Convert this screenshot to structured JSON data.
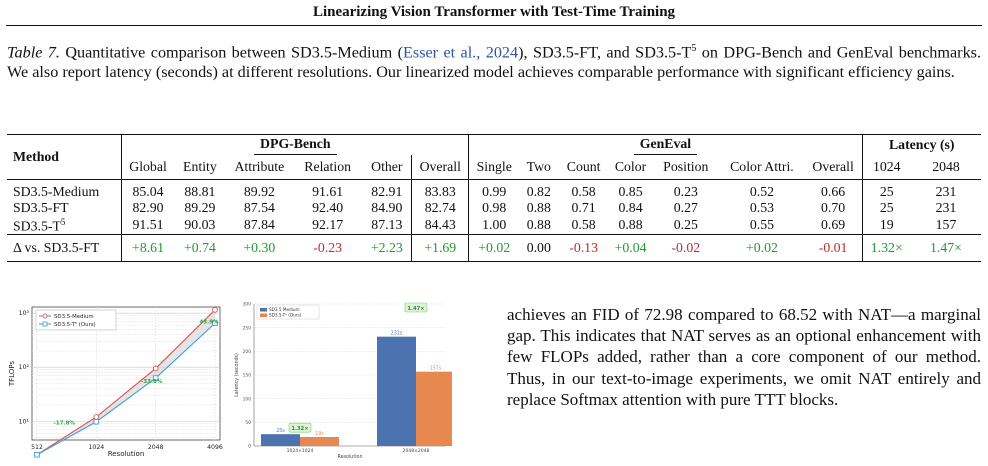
{
  "running_head": "Linearizing Vision Transformer with Test-Time Training",
  "caption": {
    "label": "Table 7.",
    "part1": " Quantitative comparison between SD3.5-Medium (",
    "cite": "Esser et al., 2024",
    "part2": "), SD3.5-FT, and SD3.5-T",
    "sup": "5",
    "part3": " on DPG-Bench and GenEval benchmarks. We also report latency (seconds) at different resolutions. Our linearized model achieves comparable performance with significant efficiency gains."
  },
  "table": {
    "method_header": "Method",
    "group_dpg": "DPG-Bench",
    "group_geneval": "GenEval",
    "group_latency": "Latency (s)",
    "dpg_cols": [
      "Global",
      "Entity",
      "Attribute",
      "Relation",
      "Other",
      "Overall"
    ],
    "geneval_cols": [
      "Single",
      "Two",
      "Count",
      "Color",
      "Position",
      "Color Attri.",
      "Overall"
    ],
    "latency_cols": [
      "1024",
      "2048"
    ],
    "rows": [
      {
        "method": "SD3.5-Medium",
        "sup": "",
        "dpg": [
          "85.04",
          "88.81",
          "89.92",
          "91.61",
          "82.91",
          "83.83"
        ],
        "geneval": [
          "0.99",
          "0.82",
          "0.58",
          "0.85",
          "0.23",
          "0.52",
          "0.66"
        ],
        "latency": [
          "25",
          "231"
        ]
      },
      {
        "method": "SD3.5-FT",
        "sup": "",
        "dpg": [
          "82.90",
          "89.29",
          "87.54",
          "92.40",
          "84.90",
          "82.74"
        ],
        "geneval": [
          "0.98",
          "0.88",
          "0.71",
          "0.84",
          "0.27",
          "0.53",
          "0.70"
        ],
        "latency": [
          "25",
          "231"
        ]
      },
      {
        "method": "SD3.5-T",
        "sup": "5",
        "dpg": [
          "91.51",
          "90.03",
          "87.84",
          "92.17",
          "87.13",
          "84.43"
        ],
        "geneval": [
          "1.00",
          "0.88",
          "0.58",
          "0.88",
          "0.25",
          "0.55",
          "0.69"
        ],
        "latency": [
          "19",
          "157"
        ]
      }
    ],
    "delta": {
      "method": "Δ vs. SD3.5-FT",
      "dpg": [
        "+8.61",
        "+0.74",
        "+0.30",
        "-0.23",
        "+2.23",
        "+1.69"
      ],
      "dpg_sign": [
        "pos",
        "pos",
        "pos",
        "neg",
        "pos",
        "pos"
      ],
      "geneval": [
        "+0.02",
        "0.00",
        "-0.13",
        "+0.04",
        "-0.02",
        "+0.02",
        "-0.01"
      ],
      "geneval_sign": [
        "pos",
        "neu",
        "neg",
        "pos",
        "neg",
        "pos",
        "neg"
      ],
      "latency": [
        "1.32×",
        "1.47×"
      ],
      "latency_sign": [
        "pos",
        "pos"
      ]
    }
  },
  "chart_data": [
    {
      "type": "line",
      "ylabel": "TFLOPs",
      "xlabel": "Resolution",
      "x_categories": [
        "512",
        "1024",
        "2048",
        "4096"
      ],
      "y_scale": "log",
      "y_ticks": [
        "10¹",
        "10²",
        "10³"
      ],
      "ylim": [
        4.5,
        1300
      ],
      "grid": true,
      "legend_position": "top-left",
      "series": [
        {
          "name": "SD3.5-Medium",
          "color": "#d9534f",
          "marker": "circle",
          "values": [
            2.4,
            12,
            95,
            1150
          ]
        },
        {
          "name": "SD3.5-T⁵ (Ours)",
          "color": "#3f9fd6",
          "marker": "square",
          "values": [
            2.4,
            9.8,
            63,
            650
          ]
        }
      ],
      "annotations": [
        {
          "text": "-17.8%",
          "color": "#2e9e3e"
        },
        {
          "text": "-33.8%",
          "color": "#2e9e3e"
        },
        {
          "text": "43.9%",
          "color": "#2e9e3e"
        }
      ]
    },
    {
      "type": "bar",
      "ylabel": "Latency (seconds)",
      "xlabel": "Resolution",
      "categories": [
        "1024×1024",
        "2048×2048"
      ],
      "ylim": [
        0,
        300
      ],
      "y_ticks": [
        "0",
        "50",
        "100",
        "150",
        "200",
        "250",
        "300"
      ],
      "grid": true,
      "legend_position": "top-left",
      "series": [
        {
          "name": "SD3.5 Medium",
          "color": "#4c72b0",
          "values": [
            25,
            231
          ],
          "labels": [
            "25s",
            "231s"
          ]
        },
        {
          "name": "SD3.5-T⁵ (Ours)",
          "color": "#e6884f",
          "values": [
            19,
            157
          ],
          "labels": [
            "19s",
            "157s"
          ]
        }
      ],
      "speedups": [
        "1.32×",
        "1.47×"
      ]
    }
  ],
  "body_text": "achieves an FID of 72.98 compared to 68.52 with NAT—a marginal gap. This indicates that NAT serves as an optional enhancement with few FLOPs added, rather than a core component of our method. Thus, in our text-to-image experiments, we omit NAT entirely and replace Softmax attention with pure TTT blocks."
}
